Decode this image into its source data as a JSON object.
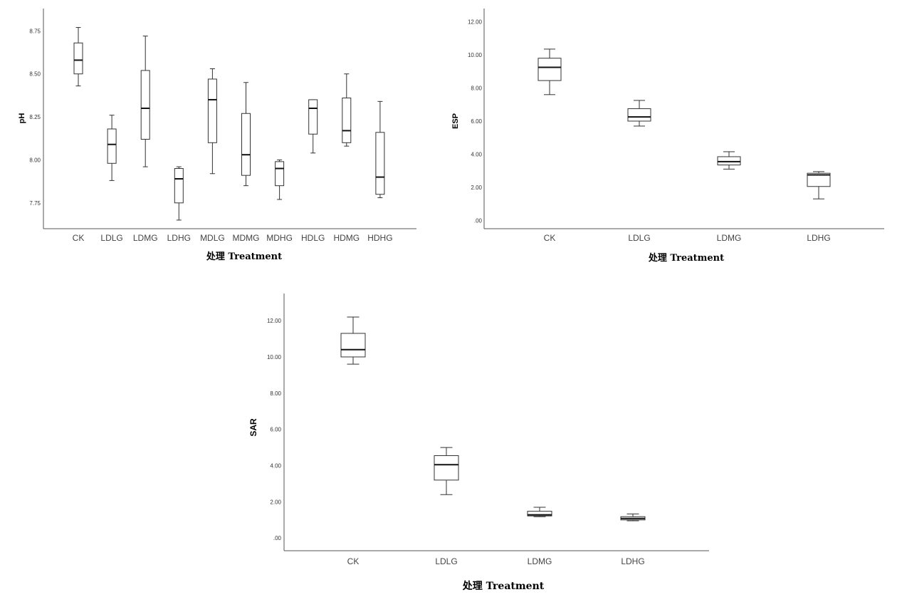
{
  "chart_data": [
    {
      "id": "ph",
      "type": "boxplot",
      "ylabel": "pH",
      "xlabel": "处理 Treatment",
      "ylim": [
        7.6,
        8.88
      ],
      "yticks": [
        "7.75",
        "8.00",
        "8.25",
        "8.50",
        "8.75"
      ],
      "categories": [
        "CK",
        "LDLG",
        "LDMG",
        "LDHG",
        "MDLG",
        "MDMG",
        "MDHG",
        "HDLG",
        "HDMG",
        "HDHG"
      ],
      "boxes": [
        {
          "min": 8.43,
          "q1": 8.5,
          "median": 8.58,
          "q3": 8.68,
          "max": 8.77
        },
        {
          "min": 7.88,
          "q1": 7.98,
          "median": 8.09,
          "q3": 8.18,
          "max": 8.26
        },
        {
          "min": 7.96,
          "q1": 8.12,
          "median": 8.3,
          "q3": 8.52,
          "max": 8.72
        },
        {
          "min": 7.65,
          "q1": 7.75,
          "median": 7.89,
          "q3": 7.95,
          "max": 7.96
        },
        {
          "min": 7.92,
          "q1": 8.1,
          "median": 8.35,
          "q3": 8.47,
          "max": 8.53
        },
        {
          "min": 7.85,
          "q1": 7.91,
          "median": 8.03,
          "q3": 8.27,
          "max": 8.45
        },
        {
          "min": 7.77,
          "q1": 7.85,
          "median": 7.95,
          "q3": 7.99,
          "max": 8.0
        },
        {
          "min": 8.04,
          "q1": 8.15,
          "median": 8.3,
          "q3": 8.35,
          "max": 8.35
        },
        {
          "min": 8.08,
          "q1": 8.1,
          "median": 8.17,
          "q3": 8.36,
          "max": 8.5
        },
        {
          "min": 7.78,
          "q1": 7.8,
          "median": 7.9,
          "q3": 8.16,
          "max": 8.34
        }
      ]
    },
    {
      "id": "esp",
      "type": "boxplot",
      "ylabel": "ESP",
      "xlabel": "处理 Treatment",
      "ylim": [
        -0.5,
        12.8
      ],
      "yticks": [
        ".00",
        "2.00",
        "4.00",
        "6.00",
        "8.00",
        "10.00",
        "12.00"
      ],
      "categories": [
        "CK",
        "LDLG",
        "LDMG",
        "LDHG"
      ],
      "boxes": [
        {
          "min": 7.6,
          "q1": 8.45,
          "median": 9.25,
          "q3": 9.8,
          "max": 10.35
        },
        {
          "min": 5.7,
          "q1": 6.0,
          "median": 6.25,
          "q3": 6.75,
          "max": 7.25
        },
        {
          "min": 3.1,
          "q1": 3.35,
          "median": 3.55,
          "q3": 3.85,
          "max": 4.15
        },
        {
          "min": 1.3,
          "q1": 2.05,
          "median": 2.75,
          "q3": 2.85,
          "max": 2.95
        }
      ]
    },
    {
      "id": "sar",
      "type": "boxplot",
      "ylabel": "SAR",
      "xlabel": "处理 Treatment",
      "ylim": [
        -0.7,
        13.5
      ],
      "yticks": [
        ".00",
        "2.00",
        "4.00",
        "6.00",
        "8.00",
        "10.00",
        "12.00"
      ],
      "categories": [
        "CK",
        "LDLG",
        "LDMG",
        "LDHG"
      ],
      "boxes": [
        {
          "min": 9.6,
          "q1": 10.0,
          "median": 10.4,
          "q3": 11.3,
          "max": 12.2
        },
        {
          "min": 2.4,
          "q1": 3.2,
          "median": 4.05,
          "q3": 4.55,
          "max": 5.0
        },
        {
          "min": 1.18,
          "q1": 1.22,
          "median": 1.28,
          "q3": 1.48,
          "max": 1.7
        },
        {
          "min": 0.95,
          "q1": 1.0,
          "median": 1.08,
          "q3": 1.18,
          "max": 1.33
        }
      ]
    }
  ]
}
